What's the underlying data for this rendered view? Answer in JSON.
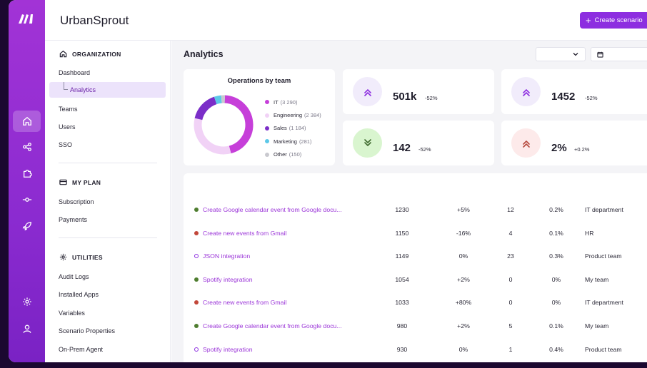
{
  "header": {
    "org_name": "UrbanSprout",
    "create_button": "Create scenario"
  },
  "sidebar": {
    "sections": [
      {
        "title": "ORGANIZATION",
        "icon": "home-icon",
        "items": [
          "Dashboard",
          "Analytics",
          "Teams",
          "Users",
          "SSO"
        ],
        "active": "Analytics"
      },
      {
        "title": "MY PLAN",
        "icon": "credit-card-icon",
        "items": [
          "Subscription",
          "Payments"
        ]
      },
      {
        "title": "UTILITIES",
        "icon": "gear-icon",
        "items": [
          "Audit Logs",
          "Installed Apps",
          "Variables",
          "Scenario Properties",
          "On-Prem Agent"
        ]
      }
    ]
  },
  "rail": {
    "items": [
      "home-icon",
      "share-icon",
      "puzzle-icon",
      "commit-icon",
      "rocket-icon",
      "settings-icon",
      "user-icon"
    ],
    "active": "home-icon"
  },
  "main": {
    "title": "Analytics",
    "filter_select": "",
    "date_picker": ""
  },
  "donut": {
    "title": "Operations by team",
    "teams": [
      {
        "name": "IT",
        "count": "(3 290)",
        "value": 3290,
        "color": "#c63fd9"
      },
      {
        "name": "Engineering",
        "count": "(2 384)",
        "value": 2384,
        "color": "#f1d2f6"
      },
      {
        "name": "Sales",
        "count": "(1 184)",
        "value": 1184,
        "color": "#7b2ec8"
      },
      {
        "name": "Marketing",
        "count": "(281)",
        "value": 281,
        "color": "#5cc8e8"
      },
      {
        "name": "Other",
        "count": "(150)",
        "value": 150,
        "color": "#c9c9cf"
      }
    ]
  },
  "stats": [
    {
      "value": "501k",
      "delta": "-52%",
      "direction": "up",
      "icon": "double-chevron-up-icon",
      "bg": "#f1ecfb",
      "color": "#8d2ee0"
    },
    {
      "value": "1452",
      "delta": "-52%",
      "direction": "up",
      "icon": "double-chevron-up-icon",
      "bg": "#f1ecfb",
      "color": "#8d2ee0"
    },
    {
      "value": "142",
      "delta": "-52%",
      "direction": "down",
      "icon": "double-chevron-down-icon",
      "bg": "#d9f5cf",
      "color": "#3f6b2e"
    },
    {
      "value": "2%",
      "delta": "+0.2%",
      "direction": "up",
      "icon": "double-chevron-up-icon",
      "bg": "#fdeaea",
      "color": "#b5483c"
    }
  ],
  "scenarios": [
    {
      "name": "Create Google calendar event from Google docu...",
      "status": "active",
      "operations": "1230",
      "change": "+5%",
      "errors": "12",
      "error_rate": "0.2%",
      "team": "IT department"
    },
    {
      "name": "Create new events from Gmail",
      "status": "error",
      "operations": "1150",
      "change": "-16%",
      "errors": "4",
      "error_rate": "0.1%",
      "team": "HR"
    },
    {
      "name": "JSON integration",
      "status": "inactive",
      "operations": "1149",
      "change": "0%",
      "errors": "23",
      "error_rate": "0.3%",
      "team": "Product team"
    },
    {
      "name": "Spotify integration",
      "status": "active",
      "operations": "1054",
      "change": "+2%",
      "errors": "0",
      "error_rate": "0%",
      "team": "My team"
    },
    {
      "name": "Create new events from Gmail",
      "status": "error",
      "operations": "1033",
      "change": "+80%",
      "errors": "0",
      "error_rate": "0%",
      "team": "IT department"
    },
    {
      "name": "Create Google calendar event from Google docu...",
      "status": "active",
      "operations": "980",
      "change": "+2%",
      "errors": "5",
      "error_rate": "0.1%",
      "team": "My team"
    },
    {
      "name": "Spotify integration",
      "status": "inactive",
      "operations": "930",
      "change": "0%",
      "errors": "1",
      "error_rate": "0.4%",
      "team": "Product team"
    }
  ],
  "status_colors": {
    "active": "#4e7d2f",
    "error": "#c2473a",
    "inactive": "#8d2ee0"
  }
}
